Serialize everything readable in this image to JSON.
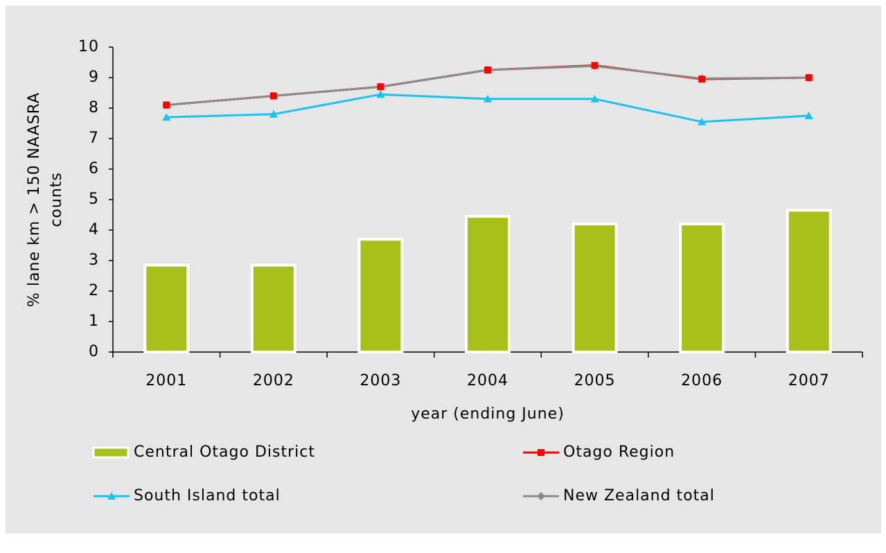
{
  "chart_data": {
    "type": "combo",
    "x_label": "year (ending June)",
    "y_label": [
      "% lane km > 150 NAASRA",
      "counts"
    ],
    "categories": [
      "2001",
      "2002",
      "2003",
      "2004",
      "2005",
      "2006",
      "2007"
    ],
    "ylim": [
      0,
      10
    ],
    "yticks": [
      0,
      1,
      2,
      3,
      4,
      5,
      6,
      7,
      8,
      9,
      10
    ],
    "series": [
      {
        "name": "Central Otago District",
        "type": "bar",
        "color": "#a8c11a",
        "values": [
          2.85,
          2.85,
          3.7,
          4.45,
          4.2,
          4.2,
          4.65
        ]
      },
      {
        "name": "Otago Region",
        "type": "line",
        "marker": "square",
        "color": "#ff0000",
        "values": [
          8.1,
          8.4,
          8.7,
          9.25,
          9.4,
          8.95,
          9.0
        ]
      },
      {
        "name": "South Island total",
        "type": "line",
        "marker": "triangle",
        "color": "#19c3f0",
        "values": [
          7.7,
          7.8,
          8.45,
          8.3,
          8.3,
          7.55,
          7.75
        ]
      },
      {
        "name": "New Zealand total",
        "type": "line",
        "marker": "diamond",
        "color": "#8a8a8a",
        "values": [
          8.1,
          8.4,
          8.7,
          9.25,
          9.38,
          8.97,
          9.0
        ]
      }
    ]
  }
}
